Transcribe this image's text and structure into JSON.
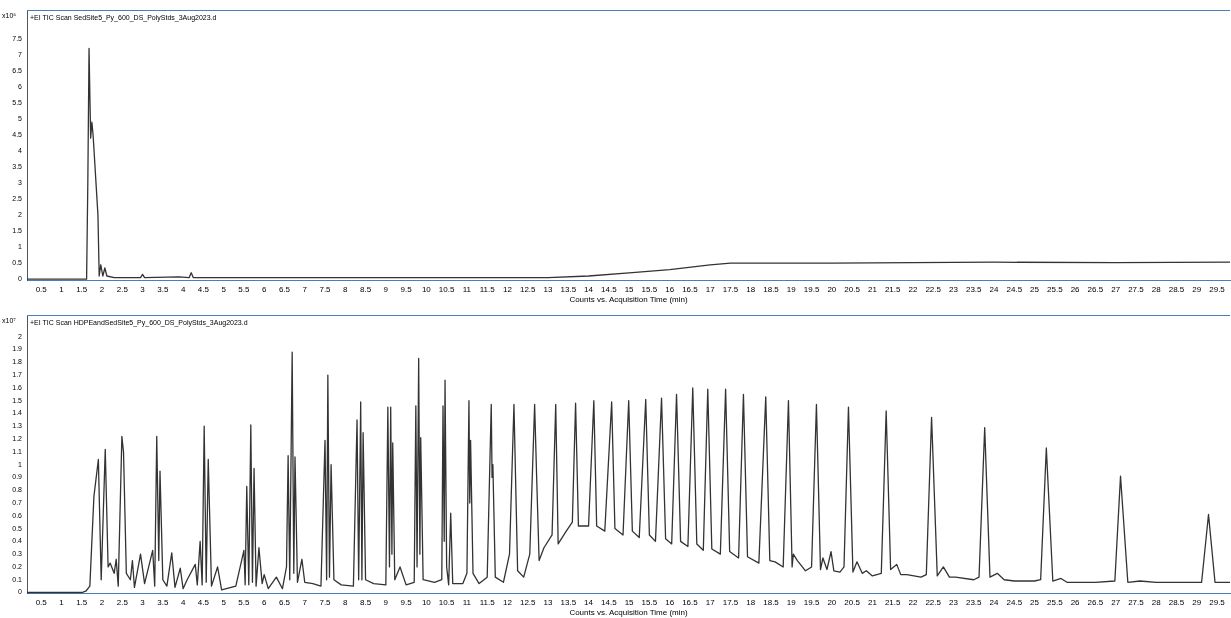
{
  "chart_data": [
    {
      "type": "line",
      "title": "+EI TIC Scan SedSite5_Py_600_DS_PolyStds_3Aug2023.d",
      "xlabel": "Counts vs. Acquisition Time (min)",
      "ylabel": "x10⁶",
      "color": "#333333",
      "grid": false,
      "legend": false,
      "marker": "none",
      "line_style": "solid",
      "xlim": [
        0.15,
        29.82
      ],
      "xticks": [
        0.5,
        1,
        1.5,
        2,
        2.5,
        3,
        3.5,
        4,
        4.5,
        5,
        5.5,
        6,
        6.5,
        7,
        7.5,
        8,
        8.5,
        9,
        9.5,
        10,
        10.5,
        11,
        11.5,
        12,
        12.5,
        13,
        13.5,
        14,
        14.5,
        15,
        15.5,
        16,
        16.5,
        17,
        17.5,
        18,
        18.5,
        19,
        19.5,
        20,
        20.5,
        21,
        21.5,
        22,
        22.5,
        23,
        23.5,
        24,
        24.5,
        25,
        25.5,
        26,
        26.5,
        27,
        27.5,
        28,
        28.5,
        29,
        29.5
      ],
      "ylim": [
        -0.05,
        8.4
      ],
      "yticks": [
        0,
        0.5,
        1,
        1.5,
        2,
        2.5,
        3,
        3.5,
        4,
        4.5,
        5,
        5.5,
        6,
        6.5,
        7,
        7.5
      ],
      "x": [
        0.15,
        1.62,
        1.65,
        1.68,
        1.72,
        1.75,
        1.78,
        1.9,
        1.93,
        1.97,
        2.02,
        2.07,
        2.12,
        2.3,
        2.5,
        2.95,
        3.0,
        3.05,
        3.9,
        4.15,
        4.2,
        4.25,
        5.4,
        6,
        7,
        10,
        13,
        14,
        15,
        16,
        17,
        17.5,
        18,
        20,
        24,
        27,
        29.82
      ],
      "values": [
        0,
        0,
        3,
        7.2,
        4.4,
        4.9,
        4.5,
        2,
        0.1,
        0.45,
        0.1,
        0.35,
        0.1,
        0.05,
        0.05,
        0.05,
        0.15,
        0.05,
        0.07,
        0.05,
        0.2,
        0.05,
        0.05,
        0.05,
        0.05,
        0.05,
        0.05,
        0.1,
        0.2,
        0.3,
        0.45,
        0.5,
        0.5,
        0.5,
        0.53,
        0.52,
        0.53
      ]
    },
    {
      "type": "line",
      "title": "+EI TIC Scan HDPEandSedSite5_Py_600_DS_PolyStds_3Aug2023.d",
      "xlabel": "Counts vs. Acquisition Time (min)",
      "ylabel": "x10⁷",
      "color": "#333333",
      "grid": false,
      "legend": false,
      "marker": "none",
      "line_style": "solid",
      "xlim": [
        0.15,
        29.82
      ],
      "xticks": [
        0.5,
        1,
        1.5,
        2,
        2.5,
        3,
        3.5,
        4,
        4.5,
        5,
        5.5,
        6,
        6.5,
        7,
        7.5,
        8,
        8.5,
        9,
        9.5,
        10,
        10.5,
        11,
        11.5,
        12,
        12.5,
        13,
        13.5,
        14,
        14.5,
        15,
        15.5,
        16,
        16.5,
        17,
        17.5,
        18,
        18.5,
        19,
        19.5,
        20,
        20.5,
        21,
        21.5,
        22,
        22.5,
        23,
        23.5,
        24,
        24.5,
        25,
        25.5,
        26,
        26.5,
        27,
        27.5,
        28,
        28.5,
        29,
        29.5
      ],
      "ylim": [
        -0.01,
        2.17
      ],
      "yticks": [
        0,
        0.1,
        0.2,
        0.3,
        0.4,
        0.5,
        0.6,
        0.7,
        0.8,
        0.9,
        1,
        1.1,
        1.2,
        1.3,
        1.4,
        1.5,
        1.6,
        1.7,
        1.8,
        1.9,
        2
      ],
      "x": [
        0.15,
        1.5,
        1.6,
        1.7,
        1.8,
        1.91,
        1.98,
        2.08,
        2.15,
        2.2,
        2.3,
        2.35,
        2.4,
        2.49,
        2.53,
        2.6,
        2.7,
        2.75,
        2.8,
        2.95,
        3.05,
        3.25,
        3.3,
        3.35,
        3.4,
        3.43,
        3.5,
        3.6,
        3.72,
        3.8,
        3.93,
        4.0,
        4.1,
        4.3,
        4.35,
        4.42,
        4.47,
        4.52,
        4.57,
        4.62,
        4.7,
        4.85,
        4.95,
        5.3,
        5.5,
        5.53,
        5.57,
        5.62,
        5.67,
        5.71,
        5.75,
        5.8,
        5.87,
        5.95,
        6.0,
        6.1,
        6.3,
        6.45,
        6.55,
        6.59,
        6.63,
        6.69,
        6.73,
        6.76,
        6.82,
        6.93,
        7.0,
        7.2,
        7.4,
        7.5,
        7.54,
        7.57,
        7.61,
        7.65,
        7.72,
        7.9,
        8.2,
        8.29,
        8.33,
        8.38,
        8.41,
        8.44,
        8.5,
        8.7,
        9.0,
        9.05,
        9.09,
        9.12,
        9.15,
        9.17,
        9.22,
        9.35,
        9.5,
        9.7,
        9.74,
        9.77,
        9.81,
        9.84,
        9.86,
        9.92,
        10.2,
        10.38,
        10.41,
        10.44,
        10.46,
        10.5,
        10.55,
        10.6,
        10.65,
        10.9,
        11.0,
        11.05,
        11.07,
        11.09,
        11.15,
        11.3,
        11.5,
        11.6,
        11.62,
        11.64,
        11.7,
        11.9,
        12.05,
        12.16,
        12.25,
        12.4,
        12.55,
        12.67,
        12.72,
        12.78,
        12.9,
        13.1,
        13.19,
        13.25,
        13.45,
        13.6,
        13.68,
        13.75,
        14.0,
        14.13,
        14.2,
        14.4,
        14.57,
        14.65,
        14.85,
        14.99,
        15.08,
        15.25,
        15.41,
        15.5,
        15.65,
        15.8,
        15.9,
        16.05,
        16.17,
        16.27,
        16.45,
        16.57,
        16.67,
        16.83,
        16.94,
        17.04,
        17.25,
        17.38,
        17.48,
        17.7,
        17.82,
        17.92,
        18.2,
        18.37,
        18.47,
        18.6,
        18.8,
        18.93,
        19.02,
        19.05,
        19.15,
        19.35,
        19.5,
        19.62,
        19.72,
        19.78,
        19.88,
        19.98,
        20.05,
        20.2,
        20.3,
        20.41,
        20.52,
        20.62,
        20.75,
        20.85,
        21.0,
        21.22,
        21.34,
        21.45,
        21.6,
        21.7,
        21.85,
        22.2,
        22.33,
        22.46,
        22.6,
        22.75,
        22.9,
        23.05,
        23.5,
        23.63,
        23.77,
        23.9,
        24.08,
        24.25,
        24.5,
        25.0,
        25.15,
        25.29,
        25.45,
        25.65,
        25.8,
        26.5,
        26.98,
        27.12,
        27.3,
        27.6,
        28.0,
        29.12,
        29.29,
        29.45,
        29.82
      ],
      "values": [
        0,
        0,
        0.01,
        0.05,
        0.75,
        1.04,
        0.1,
        1.12,
        0.2,
        0.23,
        0.15,
        0.26,
        0.05,
        1.22,
        1.1,
        0.15,
        0.1,
        0.25,
        0.04,
        0.3,
        0.07,
        0.33,
        0.05,
        1.22,
        0.25,
        0.95,
        0.1,
        0.05,
        0.31,
        0.04,
        0.19,
        0.03,
        0.1,
        0.22,
        0.06,
        0.4,
        0.06,
        1.3,
        0.08,
        1.04,
        0.05,
        0.2,
        0.02,
        0.05,
        0.33,
        0.06,
        0.83,
        0.06,
        1.31,
        0.08,
        0.97,
        0.05,
        0.35,
        0.07,
        0.14,
        0.03,
        0.12,
        0.03,
        0.2,
        1.07,
        0.1,
        1.88,
        0.15,
        1.06,
        0.08,
        0.26,
        0.08,
        0.07,
        0.05,
        1.19,
        0.1,
        1.7,
        0.12,
        1.0,
        0.1,
        0.06,
        0.05,
        1.35,
        0.1,
        1.49,
        0.1,
        1.25,
        0.1,
        0.07,
        0.06,
        1.45,
        0.2,
        1.45,
        0.3,
        1.17,
        0.1,
        0.2,
        0.06,
        0.08,
        1.46,
        0.2,
        1.83,
        0.3,
        1.21,
        0.1,
        0.08,
        0.1,
        1.46,
        0.4,
        1.66,
        0.2,
        0.06,
        0.62,
        0.07,
        0.07,
        0.15,
        1.5,
        0.7,
        1.19,
        0.15,
        0.07,
        0.12,
        1.47,
        0.9,
        1.0,
        0.12,
        0.08,
        0.3,
        1.47,
        0.17,
        0.12,
        0.3,
        1.47,
        0.9,
        0.25,
        0.35,
        0.45,
        1.47,
        0.38,
        0.48,
        0.55,
        1.48,
        0.52,
        0.52,
        1.5,
        0.52,
        0.48,
        1.49,
        0.5,
        0.45,
        1.5,
        0.48,
        0.43,
        1.51,
        0.45,
        0.4,
        1.52,
        0.42,
        0.38,
        1.55,
        0.4,
        0.36,
        1.6,
        0.38,
        0.33,
        1.59,
        0.34,
        0.3,
        1.59,
        0.32,
        0.27,
        1.55,
        0.28,
        0.23,
        1.53,
        0.25,
        0.24,
        0.2,
        1.5,
        0.2,
        0.3,
        0.25,
        0.17,
        0.2,
        1.47,
        0.18,
        0.27,
        0.18,
        0.32,
        0.17,
        0.16,
        0.2,
        1.45,
        0.16,
        0.24,
        0.15,
        0.17,
        0.13,
        0.15,
        1.42,
        0.18,
        0.22,
        0.14,
        0.14,
        0.12,
        0.14,
        1.37,
        0.13,
        0.2,
        0.12,
        0.12,
        0.1,
        0.12,
        1.29,
        0.12,
        0.15,
        0.1,
        0.09,
        0.09,
        0.1,
        1.13,
        0.09,
        0.11,
        0.08,
        0.08,
        0.09,
        0.91,
        0.08,
        0.09,
        0.08,
        0.08,
        0.61,
        0.08,
        0.08
      ]
    }
  ]
}
